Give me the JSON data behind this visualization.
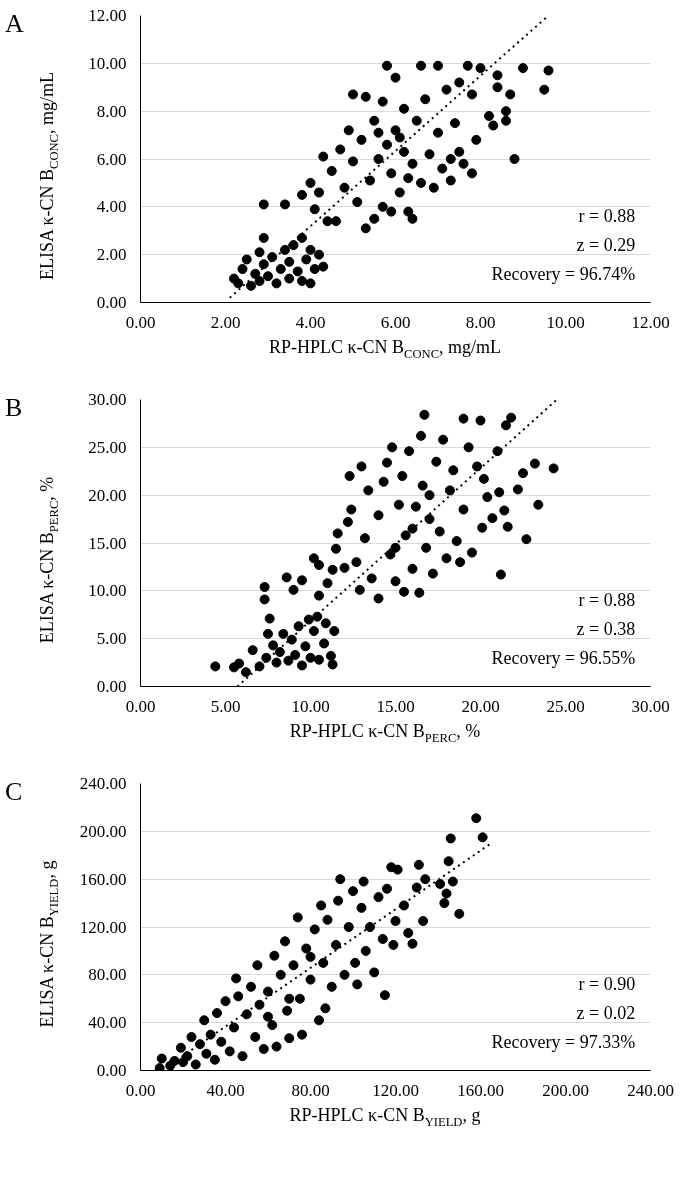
{
  "chart_data": [
    {
      "type": "scatter",
      "title": "A",
      "xlabel": "RP-HPLC κ-CN B$_{CONC}$, mg/mL",
      "ylabel": "ELISA κ-CN B$_{CONC}$, mg/mL",
      "xlim": [
        0,
        12
      ],
      "ylim": [
        0,
        12
      ],
      "xticks": [
        {
          "value": 0,
          "label": "0.00"
        },
        {
          "value": 2,
          "label": "2.00"
        },
        {
          "value": 4,
          "label": "4.00"
        },
        {
          "value": 6,
          "label": "6.00"
        },
        {
          "value": 8,
          "label": "8.00"
        },
        {
          "value": 10,
          "label": "10.00"
        },
        {
          "value": 12,
          "label": "12.00"
        }
      ],
      "yticks": [
        {
          "value": 0,
          "label": "0.00"
        },
        {
          "value": 2,
          "label": "2.00"
        },
        {
          "value": 4,
          "label": "4.00"
        },
        {
          "value": 6,
          "label": "6.00"
        },
        {
          "value": 8,
          "label": "8.00"
        },
        {
          "value": 10,
          "label": "10.00"
        },
        {
          "value": 12,
          "label": "12.00"
        }
      ],
      "grid": "y",
      "annotations": [
        "r = 0.88",
        "z = 0.29",
        "Recovery = 96.74%"
      ],
      "series": [
        {
          "color": "#000000",
          "marker": "circle",
          "x": [
            2.2,
            2.3,
            2.4,
            2.5,
            2.6,
            2.7,
            2.8,
            2.8,
            2.9,
            2.9,
            2.9,
            3.0,
            3.1,
            3.2,
            3.3,
            3.4,
            3.5,
            3.5,
            3.6,
            3.7,
            3.8,
            3.8,
            3.9,
            4.0,
            4.0,
            4.1,
            4.2,
            4.3,
            3.4,
            3.8,
            4.0,
            4.1,
            4.2,
            4.3,
            4.4,
            4.5,
            4.6,
            4.7,
            4.8,
            4.9,
            5.0,
            5.0,
            5.1,
            5.2,
            5.3,
            5.3,
            5.4,
            5.5,
            5.5,
            5.6,
            5.7,
            5.7,
            5.8,
            5.8,
            5.9,
            5.9,
            6.0,
            6.0,
            6.1,
            6.2,
            6.2,
            6.3,
            6.4,
            6.4,
            6.5,
            6.6,
            6.6,
            6.7,
            6.8,
            6.9,
            7.0,
            7.0,
            7.1,
            7.2,
            7.3,
            7.3,
            7.4,
            7.5,
            7.5,
            7.6,
            7.7,
            7.8,
            7.8,
            7.9,
            8.0,
            8.2,
            8.3,
            8.4,
            8.4,
            8.6,
            8.6,
            8.7,
            8.8,
            9.0,
            9.5,
            9.6,
            6.1,
            5.6,
            6.3
          ],
          "values": [
            1.0,
            0.8,
            1.4,
            1.8,
            0.7,
            1.2,
            2.1,
            0.9,
            1.6,
            2.7,
            4.1,
            1.1,
            1.9,
            0.8,
            1.4,
            2.2,
            1.0,
            1.7,
            2.4,
            1.3,
            2.7,
            0.9,
            1.8,
            0.8,
            2.2,
            1.4,
            2.0,
            1.5,
            4.1,
            4.5,
            5.0,
            3.9,
            4.6,
            6.1,
            3.4,
            5.5,
            3.4,
            6.4,
            4.8,
            7.2,
            8.7,
            5.9,
            4.2,
            6.8,
            8.6,
            3.1,
            5.1,
            7.6,
            3.5,
            6.0,
            4.0,
            8.4,
            9.9,
            6.6,
            3.8,
            5.4,
            7.2,
            9.4,
            4.6,
            6.3,
            8.1,
            3.8,
            5.8,
            3.5,
            7.6,
            9.9,
            5.0,
            8.5,
            6.2,
            4.8,
            9.9,
            7.1,
            5.6,
            8.9,
            6.0,
            5.1,
            7.5,
            9.2,
            6.3,
            5.8,
            9.9,
            8.7,
            5.4,
            6.8,
            9.8,
            7.8,
            7.4,
            9.5,
            9.0,
            7.6,
            8.0,
            8.7,
            6.0,
            9.8,
            8.9,
            9.7,
            6.9,
            7.1,
            5.2
          ]
        },
        {
          "type": "line",
          "line_style": "dotted",
          "color": "#000000",
          "x": [
            2.1,
            9.6
          ],
          "values": [
            0.2,
            12.0
          ]
        }
      ]
    },
    {
      "type": "scatter",
      "title": "B",
      "xlabel": "RP-HPLC κ-CN B$_{PERC}$, %",
      "ylabel": "ELISA κ-CN B$_{PERC}$, %",
      "xlim": [
        0,
        30
      ],
      "ylim": [
        0,
        30
      ],
      "xticks": [
        {
          "value": 0,
          "label": "0.00"
        },
        {
          "value": 5,
          "label": "5.00"
        },
        {
          "value": 10,
          "label": "10.00"
        },
        {
          "value": 15,
          "label": "15.00"
        },
        {
          "value": 20,
          "label": "20.00"
        },
        {
          "value": 25,
          "label": "25.00"
        },
        {
          "value": 30,
          "label": "30.00"
        }
      ],
      "yticks": [
        {
          "value": 0,
          "label": "0.00"
        },
        {
          "value": 5,
          "label": "5.00"
        },
        {
          "value": 10,
          "label": "10.00"
        },
        {
          "value": 15,
          "label": "15.00"
        },
        {
          "value": 20,
          "label": "20.00"
        },
        {
          "value": 25,
          "label": "25.00"
        },
        {
          "value": 30,
          "label": "30.00"
        }
      ],
      "grid": "y",
      "annotations": [
        "r = 0.88",
        "z = 0.38",
        "Recovery = 96.55%"
      ],
      "series": [
        {
          "color": "#000000",
          "marker": "circle",
          "x": [
            4.4,
            5.5,
            5.8,
            6.2,
            6.6,
            7.0,
            7.3,
            7.3,
            7.4,
            7.5,
            7.6,
            7.8,
            8.0,
            8.2,
            8.4,
            8.6,
            8.7,
            8.9,
            9.0,
            9.1,
            9.3,
            9.5,
            9.7,
            9.9,
            10.0,
            10.2,
            10.4,
            10.5,
            10.8,
            10.9,
            11.2,
            11.4,
            11.3,
            9.5,
            10.2,
            10.5,
            10.5,
            11.0,
            11.3,
            11.5,
            11.6,
            12.0,
            12.2,
            12.4,
            12.3,
            12.7,
            12.9,
            13.0,
            13.2,
            13.4,
            13.6,
            14.0,
            14.0,
            14.3,
            14.5,
            14.7,
            14.8,
            15.0,
            15.2,
            15.4,
            15.5,
            15.6,
            15.8,
            16.0,
            16.2,
            16.4,
            16.5,
            16.6,
            16.7,
            16.8,
            17.0,
            17.2,
            17.4,
            17.6,
            17.8,
            18.0,
            18.2,
            18.4,
            18.6,
            18.8,
            19.0,
            19.0,
            19.3,
            19.5,
            19.8,
            20.0,
            20.1,
            20.2,
            20.4,
            20.7,
            21.0,
            21.1,
            21.2,
            21.4,
            21.5,
            21.6,
            21.8,
            22.2,
            22.5,
            22.7,
            23.2,
            23.4,
            24.3,
            16.0,
            17.0,
            15.0
          ],
          "values": [
            2.1,
            2.0,
            2.4,
            1.5,
            3.8,
            2.1,
            10.4,
            9.1,
            3.0,
            5.5,
            7.1,
            4.3,
            2.5,
            3.6,
            5.5,
            11.4,
            2.7,
            4.9,
            10.1,
            3.3,
            6.3,
            2.2,
            4.2,
            7.0,
            3.0,
            5.8,
            7.3,
            2.8,
            4.5,
            6.6,
            3.2,
            5.8,
            2.3,
            11.1,
            13.4,
            12.7,
            9.5,
            10.8,
            12.2,
            14.4,
            16.0,
            12.4,
            17.2,
            18.5,
            22.0,
            13.0,
            10.1,
            23.0,
            15.5,
            20.5,
            11.3,
            9.2,
            17.9,
            21.4,
            23.4,
            13.8,
            25.0,
            11.0,
            19.0,
            22.0,
            9.9,
            15.8,
            24.6,
            12.3,
            18.8,
            9.8,
            26.2,
            21.0,
            28.4,
            14.5,
            17.5,
            11.8,
            23.5,
            16.2,
            25.8,
            13.4,
            20.5,
            22.6,
            15.2,
            13.0,
            28.0,
            18.5,
            25.0,
            14.0,
            23.0,
            27.8,
            16.6,
            21.7,
            19.8,
            17.6,
            24.6,
            20.3,
            11.7,
            18.4,
            27.3,
            16.7,
            28.1,
            20.6,
            22.3,
            15.4,
            23.3,
            19.0,
            22.8,
            16.5,
            20.0,
            14.5
          ]
        },
        {
          "type": "line",
          "line_style": "dotted",
          "color": "#000000",
          "x": [
            5.7,
            24.5
          ],
          "values": [
            0.0,
            30.0
          ]
        }
      ]
    },
    {
      "type": "scatter",
      "title": "C",
      "xlabel": "RP-HPLC κ-CN B$_{YIELD}$, g",
      "ylabel": "ELISA κ-CN B$_{YIELD}$, g",
      "xlim": [
        0,
        240
      ],
      "ylim": [
        0,
        240
      ],
      "xticks": [
        {
          "value": 0,
          "label": "0.00"
        },
        {
          "value": 40,
          "label": "40.00"
        },
        {
          "value": 80,
          "label": "80.00"
        },
        {
          "value": 120,
          "label": "120.00"
        },
        {
          "value": 160,
          "label": "160.00"
        },
        {
          "value": 200,
          "label": "200.00"
        },
        {
          "value": 240,
          "label": "240.00"
        }
      ],
      "yticks": [
        {
          "value": 0,
          "label": "0.00"
        },
        {
          "value": 40,
          "label": "40.00"
        },
        {
          "value": 80,
          "label": "80.00"
        },
        {
          "value": 120,
          "label": "120.00"
        },
        {
          "value": 160,
          "label": "160.00"
        },
        {
          "value": 200,
          "label": "200.00"
        },
        {
          "value": 240,
          "label": "240.00"
        }
      ],
      "grid": "y",
      "annotations": [
        "r = 0.90",
        "z = 0.02",
        "Recovery = 97.33%"
      ],
      "series": [
        {
          "color": "#000000",
          "marker": "circle",
          "x": [
            9,
            10,
            14,
            16,
            19,
            20,
            22,
            24,
            26,
            28,
            30,
            31,
            33,
            35,
            36,
            38,
            40,
            42,
            44,
            45,
            46,
            48,
            50,
            52,
            54,
            55,
            56,
            58,
            60,
            62,
            63,
            64,
            66,
            68,
            69,
            70,
            72,
            74,
            75,
            76,
            78,
            80,
            82,
            84,
            85,
            86,
            87,
            88,
            90,
            92,
            93,
            94,
            96,
            98,
            100,
            101,
            102,
            104,
            105,
            106,
            108,
            110,
            112,
            114,
            115,
            116,
            118,
            119,
            120,
            121,
            124,
            126,
            128,
            130,
            131,
            133,
            134,
            141,
            143,
            144,
            145,
            146,
            147,
            150,
            158,
            161,
            70,
            80,
            60
          ],
          "values": [
            2,
            10,
            4,
            8,
            19,
            7,
            12,
            28,
            5,
            22,
            42,
            14,
            30,
            9,
            48,
            24,
            58,
            16,
            36,
            77,
            62,
            12,
            47,
            70,
            28,
            88,
            55,
            18,
            66,
            38,
            96,
            20,
            80,
            108,
            50,
            27,
            88,
            128,
            60,
            30,
            102,
            76,
            118,
            42,
            138,
            90,
            52,
            126,
            70,
            105,
            142,
            160,
            80,
            120,
            150,
            90,
            72,
            136,
            158,
            100,
            120,
            82,
            145,
            110,
            63,
            152,
            170,
            105,
            125,
            168,
            138,
            115,
            106,
            153,
            172,
            125,
            160,
            156,
            140,
            148,
            175,
            194,
            158,
            131,
            211,
            195,
            60,
            95,
            45
          ]
        },
        {
          "type": "line",
          "line_style": "dotted",
          "color": "#000000",
          "x": [
            10,
            165
          ],
          "values": [
            0,
            190
          ]
        }
      ]
    }
  ]
}
